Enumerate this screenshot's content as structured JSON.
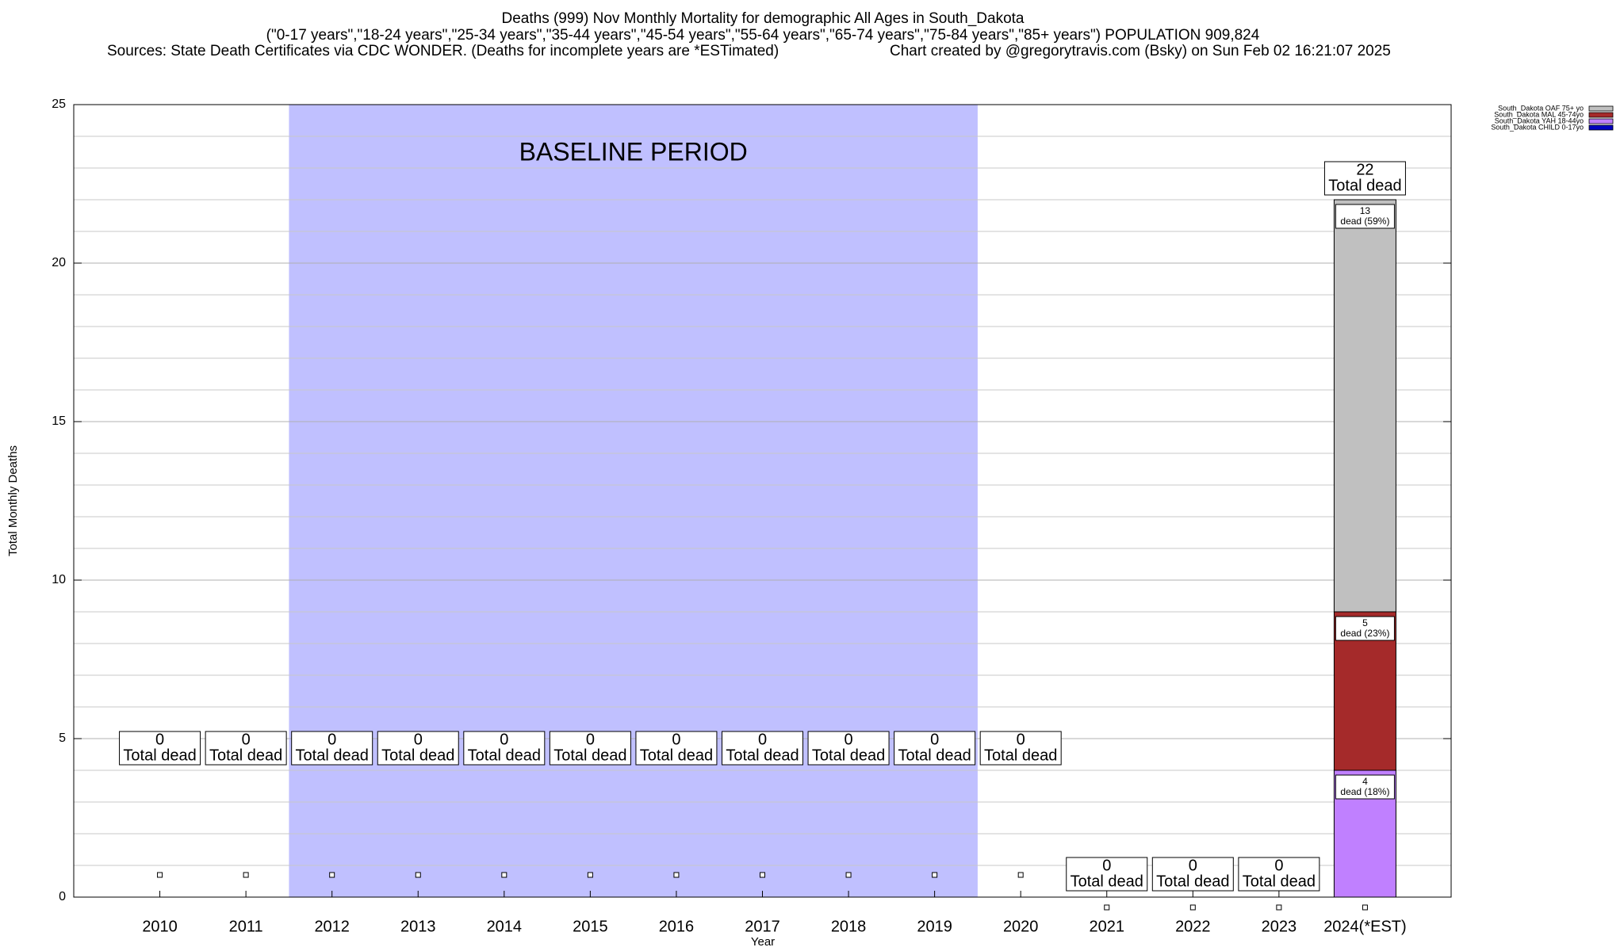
{
  "chart_data": {
    "type": "stacked_bar",
    "title": "Deaths (999) Nov Monthly Mortality for demographic All Ages in South_Dakota",
    "subtitle": "(\"0-17 years\",\"18-24 years\",\"25-34 years\",\"35-44 years\",\"45-54 years\",\"55-64 years\",\"65-74 years\",\"75-84 years\",\"85+ years\") POPULATION 909,824",
    "sources": "Sources: State Death Certificates via CDC WONDER. (Deaths for incomplete years are *ESTimated)",
    "credit": "Chart created by @gregorytravis.com (Bsky) on Sun Feb 02 16:21:07 2025",
    "x_label": "Year",
    "y_label": "Total Monthly Deaths",
    "categories": [
      "2010",
      "2011",
      "2012",
      "2013",
      "2014",
      "2015",
      "2016",
      "2017",
      "2018",
      "2019",
      "2020",
      "2021",
      "2022",
      "2023",
      "2024(*EST)"
    ],
    "series": [
      {
        "name": "South_Dakota CHILD 0-17yo",
        "color": "#0000c0",
        "values": [
          0,
          0,
          0,
          0,
          0,
          0,
          0,
          0,
          0,
          0,
          0,
          0,
          0,
          0,
          0
        ],
        "percent_labels": [
          null,
          null,
          null,
          null,
          null,
          null,
          null,
          null,
          null,
          null,
          null,
          null,
          null,
          null,
          null
        ]
      },
      {
        "name": "South_Dakota YAH 18-44yo",
        "color": "#c080ff",
        "values": [
          0,
          0,
          0,
          0,
          0,
          0,
          0,
          0,
          0,
          0,
          0,
          0,
          0,
          0,
          4
        ],
        "percent_labels": [
          null,
          null,
          null,
          null,
          null,
          null,
          null,
          null,
          null,
          null,
          null,
          null,
          null,
          null,
          "dead (18%)"
        ]
      },
      {
        "name": "South_Dakota MAL 45-74yo",
        "color": "#a52a2a",
        "values": [
          0,
          0,
          0,
          0,
          0,
          0,
          0,
          0,
          0,
          0,
          0,
          0,
          0,
          0,
          5
        ],
        "percent_labels": [
          null,
          null,
          null,
          null,
          null,
          null,
          null,
          null,
          null,
          null,
          null,
          null,
          null,
          null,
          "dead (23%)"
        ]
      },
      {
        "name": "South_Dakota OAF 75+ yo",
        "color": "#c0c0c0",
        "values": [
          0,
          0,
          0,
          0,
          0,
          0,
          0,
          0,
          0,
          0,
          0,
          0,
          0,
          0,
          13
        ],
        "percent_labels": [
          null,
          null,
          null,
          null,
          null,
          null,
          null,
          null,
          null,
          null,
          null,
          null,
          null,
          null,
          "dead (59%)"
        ]
      }
    ],
    "totals": [
      0,
      0,
      0,
      0,
      0,
      0,
      0,
      0,
      0,
      0,
      0,
      0,
      0,
      0,
      22
    ],
    "total_label": "Total dead",
    "baseline": {
      "label": "BASELINE PERIOD",
      "from": "2012",
      "to": "2019",
      "color": "#c0c0ff"
    },
    "ylim": [
      0,
      25
    ],
    "yticks": [
      0,
      5,
      10,
      15,
      20,
      25
    ],
    "yminor": [
      1,
      2,
      3,
      4,
      6,
      7,
      8,
      9,
      11,
      12,
      13,
      14,
      16,
      17,
      18,
      19,
      21,
      22,
      23,
      24
    ],
    "grid": true,
    "legend": "top-right"
  }
}
